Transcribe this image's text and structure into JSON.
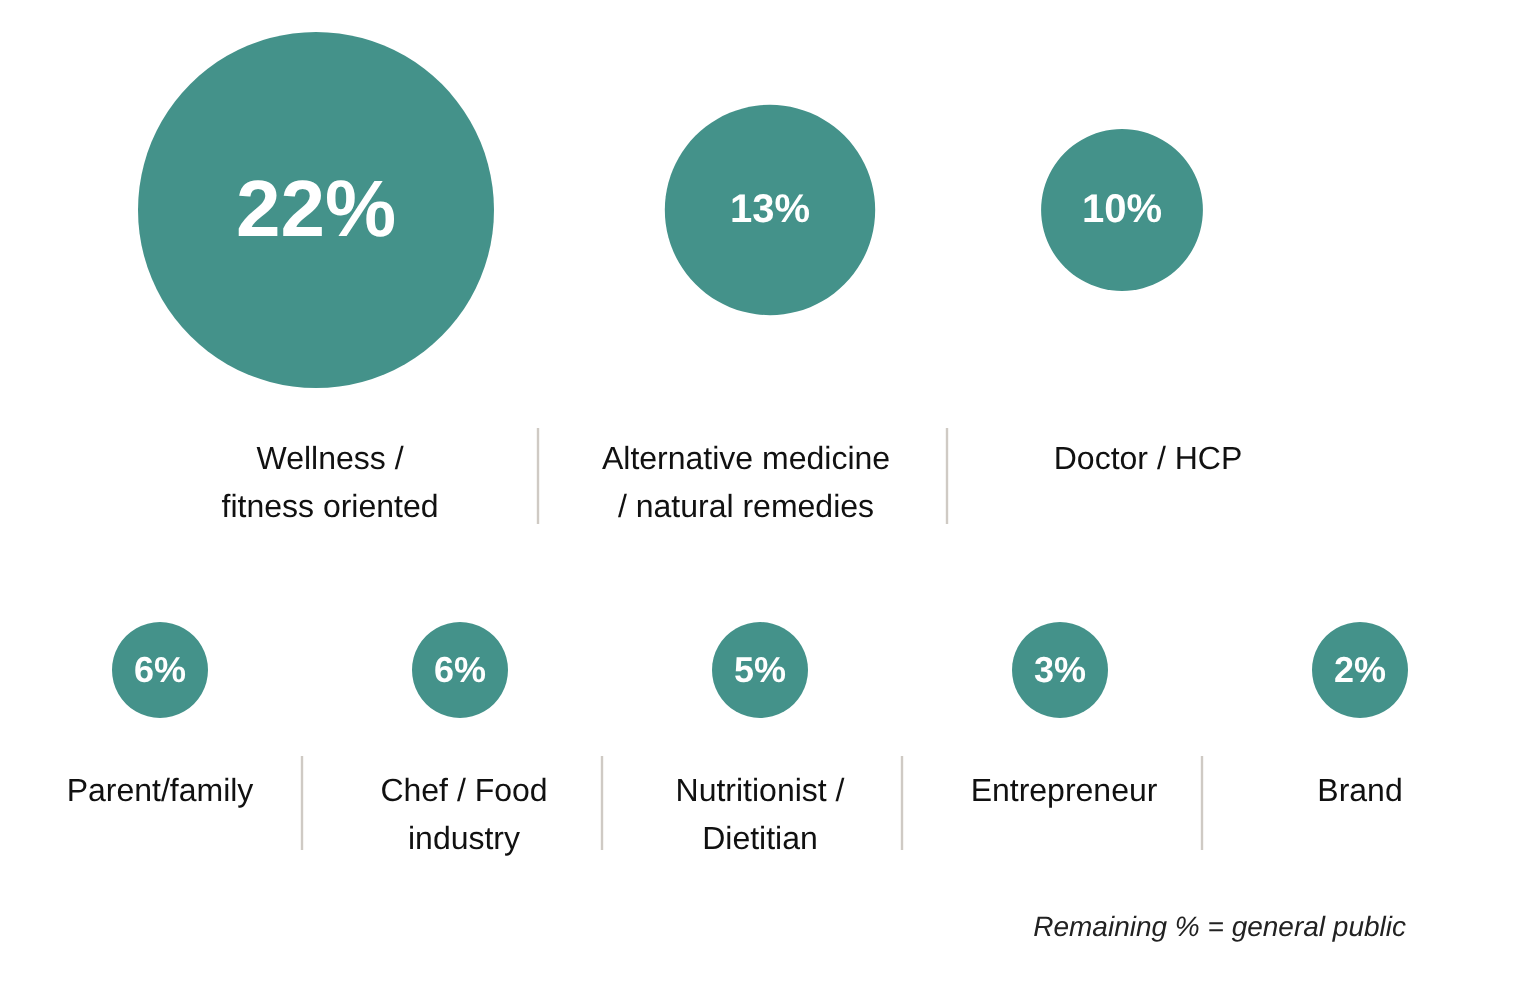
{
  "chart_data": {
    "type": "other",
    "categories": [
      "Wellness /\nfitness oriented",
      "Alternative medicine\n/ natural remedies",
      "Doctor / HCP",
      "Parent/family",
      "Chef / Food\nindustry",
      "Nutritionist /\nDietitian",
      "Entrepreneur",
      "Brand"
    ],
    "values": [
      22,
      13,
      10,
      6,
      6,
      5,
      3,
      2
    ],
    "value_labels": [
      "22%",
      "13%",
      "10%",
      "6%",
      "6%",
      "5%",
      "3%",
      "2%"
    ],
    "color": "#44928a",
    "annotations": [
      "Remaining % = general public"
    ]
  }
}
